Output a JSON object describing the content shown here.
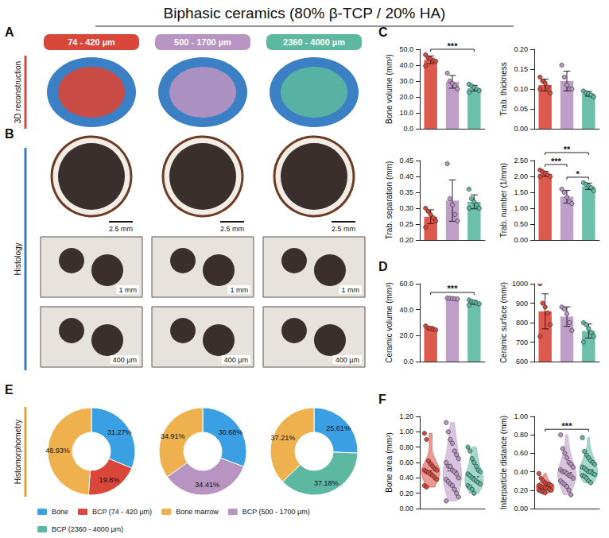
{
  "title": "Biphasic ceramics (80% β-TCP / 20% HA)",
  "groups": {
    "labels": [
      "74 - 420 µm",
      "500 - 1700 µm",
      "2360 - 4000 µm"
    ],
    "colors": [
      "#d9473a",
      "#b894c2",
      "#5cb8a1"
    ]
  },
  "sections": [
    {
      "letter": "A",
      "label": "3D reconstruction",
      "color": "#d9473a"
    },
    {
      "letter": "B",
      "label": "Histology",
      "color": "#3a7cc0",
      "scale_bars": [
        "2.5 mm",
        "1 mm",
        "400 µm"
      ]
    },
    {
      "letter": "E",
      "label": "Histomorphometry",
      "color": "#e3a23a"
    }
  ],
  "chart_data": [
    {
      "type": "bar",
      "panel": "C",
      "y_label": "Bone volume (mm³)",
      "categories": [
        "74 - 420 µm",
        "500 - 1700 µm",
        "2360 - 4000 µm"
      ],
      "values": [
        43.4,
        29.5,
        25.5
      ],
      "errors": [
        2.4,
        4.0,
        1.8
      ],
      "points": [
        [
          46.5,
          44.5,
          44,
          43,
          42.5,
          39.5
        ],
        [
          35,
          30,
          28.5,
          27,
          25
        ],
        [
          28,
          27,
          26,
          25,
          24,
          23
        ]
      ],
      "colors": [
        "#d9473a",
        "#b894c2",
        "#5cb8a1"
      ],
      "ylim": [
        0,
        50
      ],
      "yticks": [
        {
          "value": 0,
          "label": "0.0"
        },
        {
          "value": 10,
          "label": "10.0"
        },
        {
          "value": 20,
          "label": "20.0"
        },
        {
          "value": 30,
          "label": "30.0"
        },
        {
          "value": 40,
          "label": "40.0"
        },
        {
          "value": 50,
          "label": "50.0"
        }
      ],
      "annotations": [
        {
          "between": [
            "74 - 420 µm",
            "2360 - 4000 µm"
          ],
          "text": "***"
        }
      ],
      "tick_labels": "y",
      "grid": false
    },
    {
      "type": "bar",
      "panel": "C",
      "y_label": "Trab. thickness",
      "categories": [
        "74 - 420 µm",
        "500 - 1700 µm",
        "2360 - 4000 µm"
      ],
      "values": [
        0.11,
        0.12,
        0.088
      ],
      "errors": [
        0.015,
        0.025,
        0.006
      ],
      "points": [
        [
          0.13,
          0.12,
          0.115,
          0.105,
          0.09,
          0.1
        ],
        [
          0.16,
          0.13,
          0.11,
          0.1,
          0.1
        ],
        [
          0.095,
          0.09,
          0.088,
          0.085,
          0.08
        ]
      ],
      "colors": [
        "#d9473a",
        "#b894c2",
        "#5cb8a1"
      ],
      "ylim": [
        0,
        0.2
      ],
      "yticks": [
        {
          "value": 0,
          "label": "0.00"
        },
        0.05,
        {
          "value": 0.1,
          "label": "0.10"
        },
        0.15,
        {
          "value": 0.2,
          "label": "0.20"
        }
      ],
      "annotations": [],
      "tick_labels": "y",
      "grid": false
    },
    {
      "type": "bar",
      "panel": "C",
      "y_label": "Trab. separation (mm)",
      "categories": [
        "74 - 420 µm",
        "500 - 1700 µm",
        "2360 - 4000 µm"
      ],
      "values": [
        0.273,
        0.324,
        0.32
      ],
      "errors": [
        0.022,
        0.065,
        0.022
      ],
      "points": [
        [
          0.3,
          0.29,
          0.28,
          0.27,
          0.26,
          0.24
        ],
        [
          0.44,
          0.33,
          0.31,
          0.28,
          0.26
        ],
        [
          0.36,
          0.33,
          0.32,
          0.31,
          0.3,
          0.3
        ]
      ],
      "colors": [
        "#d9473a",
        "#b894c2",
        "#5cb8a1"
      ],
      "ylim": [
        0.2,
        0.45
      ],
      "yticks": [
        {
          "value": 0.2,
          "label": "0.20"
        },
        0.25,
        {
          "value": 0.3,
          "label": "0.30"
        },
        0.35,
        {
          "value": 0.4,
          "label": "0.40"
        },
        0.45
      ],
      "annotations": [],
      "tick_labels": "y",
      "grid": false
    },
    {
      "type": "bar",
      "panel": "C",
      "y_label": "Trab. number (1/mm)",
      "categories": [
        "74 - 420 µm",
        "500 - 1700 µm",
        "2360 - 4000 µm"
      ],
      "values": [
        2.08,
        1.36,
        1.69
      ],
      "errors": [
        0.08,
        0.2,
        0.1
      ],
      "points": [
        [
          2.2,
          2.15,
          2.1,
          2.05,
          2.0,
          2.0
        ],
        [
          1.6,
          1.5,
          1.35,
          1.2,
          1.15
        ],
        [
          1.8,
          1.75,
          1.7,
          1.65,
          1.55
        ]
      ],
      "colors": [
        "#d9473a",
        "#b894c2",
        "#5cb8a1"
      ],
      "ylim": [
        0,
        2.5
      ],
      "yticks": [
        {
          "value": 0,
          "label": "0.00"
        },
        {
          "value": 0.5,
          "label": "0.50"
        },
        {
          "value": 1,
          "label": "1.00"
        },
        {
          "value": 1.5,
          "label": "1.50"
        },
        {
          "value": 2,
          "label": "2.00"
        },
        {
          "value": 2.5,
          "label": "2.50"
        }
      ],
      "annotations": [
        {
          "between": [
            "74 - 420 µm",
            "500 - 1700 µm"
          ],
          "text": "***"
        },
        {
          "between": [
            "500 - 1700 µm",
            "2360 - 4000 µm"
          ],
          "text": "*"
        },
        {
          "between": [
            "74 - 420 µm",
            "2360 - 4000 µm"
          ],
          "text": "**"
        }
      ],
      "tick_labels": "y",
      "grid": false
    },
    {
      "type": "bar",
      "panel": "D",
      "y_label": "Ceramic volume (mm³)",
      "categories": [
        "74 - 420 µm",
        "500 - 1700 µm",
        "2360 - 4000 µm"
      ],
      "values": [
        25.7,
        48.6,
        45.5
      ],
      "errors": [
        1.2,
        0.3,
        1.5
      ],
      "points": [
        [
          27.5,
          26,
          25.5,
          25,
          24.5
        ],
        [
          49,
          48.8,
          48.6,
          48.4,
          48.2
        ],
        [
          47.5,
          46.5,
          46,
          45,
          44.5,
          43.5
        ]
      ],
      "colors": [
        "#d9473a",
        "#b894c2",
        "#5cb8a1"
      ],
      "ylim": [
        0,
        60
      ],
      "yticks": [
        {
          "value": 0,
          "label": "0.0"
        },
        {
          "value": 20,
          "label": "20.0"
        },
        {
          "value": 40,
          "label": "40.0"
        },
        {
          "value": 60,
          "label": "60.0"
        }
      ],
      "annotations": [
        {
          "between": [
            "74 - 420 µm",
            "2360 - 4000 µm"
          ],
          "text": "***"
        }
      ],
      "tick_labels": "y",
      "grid": false
    },
    {
      "type": "bar",
      "panel": "D",
      "y_label": "Ceramic surface (mm²)",
      "categories": [
        "74 - 420 µm",
        "500 - 1700 µm",
        "2360 - 4000 µm"
      ],
      "values": [
        858,
        831,
        757
      ],
      "errors": [
        90,
        50,
        36
      ],
      "points": [
        [
          1000,
          900,
          880,
          850,
          790,
          730
        ],
        [
          880,
          870,
          845,
          800,
          760
        ],
        [
          800,
          790,
          770,
          750,
          730,
          700
        ]
      ],
      "colors": [
        "#d9473a",
        "#b894c2",
        "#5cb8a1"
      ],
      "ylim": [
        600,
        1000
      ],
      "yticks": [
        600,
        700,
        800,
        900,
        1000
      ],
      "annotations": [],
      "tick_labels": "y",
      "grid": false
    },
    {
      "type": "violin",
      "panel": "F",
      "y_label": "Bone area (mm²)",
      "categories": [
        "74 - 420 µm",
        "500 - 1700 µm",
        "2360 - 4000 µm"
      ],
      "points": [
        [
          0.98,
          0.9,
          0.62,
          0.58,
          0.55,
          0.52,
          0.5,
          0.5,
          0.48,
          0.47,
          0.45,
          0.43,
          0.4,
          0.38,
          0.3,
          0.28
        ],
        [
          1.12,
          1.0,
          0.9,
          0.85,
          0.75,
          0.7,
          0.65,
          0.6,
          0.55,
          0.55,
          0.5,
          0.48,
          0.45,
          0.4,
          0.38,
          0.35,
          0.32,
          0.3,
          0.25,
          0.2,
          0.15,
          0.1
        ],
        [
          0.8,
          0.75,
          0.65,
          0.6,
          0.55,
          0.5,
          0.48,
          0.45,
          0.43,
          0.4,
          0.38,
          0.36,
          0.34,
          0.32,
          0.3,
          0.28,
          0.25,
          0.2
        ]
      ],
      "colors": [
        "#d9473a",
        "#b894c2",
        "#5cb8a1"
      ],
      "ylim": [
        0,
        1.2
      ],
      "yticks": [
        {
          "value": 0,
          "label": "0.00"
        },
        {
          "value": 0.2,
          "label": "0.20"
        },
        {
          "value": 0.4,
          "label": "0.40"
        },
        {
          "value": 0.6,
          "label": "0.60"
        },
        {
          "value": 0.8,
          "label": "0.80"
        },
        {
          "value": 1,
          "label": "1.00"
        },
        {
          "value": 1.2,
          "label": "1.20"
        }
      ],
      "annotations": [],
      "tick_labels": "y",
      "grid": false
    },
    {
      "type": "violin",
      "panel": "F",
      "y_label": "Interparticle distance (mm)",
      "categories": [
        "74 - 420 µm",
        "500 - 1700 µm",
        "2360 - 4000 µm"
      ],
      "points": [
        [
          0.38,
          0.33,
          0.3,
          0.28,
          0.27,
          0.26,
          0.25,
          0.25,
          0.24,
          0.23,
          0.23,
          0.22,
          0.21,
          0.2,
          0.2,
          0.19,
          0.18,
          0.17
        ],
        [
          0.8,
          0.65,
          0.6,
          0.55,
          0.5,
          0.48,
          0.45,
          0.42,
          0.4,
          0.4,
          0.38,
          0.36,
          0.35,
          0.33,
          0.3,
          0.28,
          0.26,
          0.24,
          0.2,
          0.15
        ],
        [
          0.77,
          0.62,
          0.58,
          0.55,
          0.52,
          0.5,
          0.48,
          0.45,
          0.44,
          0.42,
          0.4,
          0.4,
          0.38,
          0.37,
          0.36,
          0.35,
          0.33,
          0.3,
          0.28
        ]
      ],
      "colors": [
        "#d9473a",
        "#b894c2",
        "#5cb8a1"
      ],
      "ylim": [
        0,
        1
      ],
      "yticks": [
        {
          "value": 0,
          "label": "0.00"
        },
        {
          "value": 0.2,
          "label": "0.20"
        },
        {
          "value": 0.4,
          "label": "0.40"
        },
        {
          "value": 0.6,
          "label": "0.60"
        },
        {
          "value": 0.8,
          "label": "0.80"
        },
        {
          "value": 1,
          "label": "1.00"
        }
      ],
      "annotations": [
        {
          "between": [
            "74 - 420 µm",
            "2360 - 4000 µm"
          ],
          "text": "***"
        }
      ],
      "tick_labels": "y",
      "grid": false
    },
    {
      "type": "pie",
      "categories": [
        "Bone",
        "BCP (74 - 420 µm)",
        "Bone marrow"
      ],
      "values": [
        31.27,
        19.8,
        48.93
      ],
      "value_labels": [
        "31.27%",
        "19.8%",
        "48.93%"
      ],
      "colors": [
        "#3aa0e3",
        "#d9473a",
        "#efb04e"
      ],
      "data_labels": true,
      "legend": "bottom"
    },
    {
      "type": "pie",
      "categories": [
        "Bone",
        "BCP (500 - 1700 µm)",
        "Bone marrow"
      ],
      "values": [
        30.68,
        34.41,
        34.91
      ],
      "value_labels": [
        "30.68%",
        "34.41%",
        "34.91%"
      ],
      "colors": [
        "#3aa0e3",
        "#b894c2",
        "#efb04e"
      ],
      "data_labels": true,
      "legend": "bottom"
    },
    {
      "type": "pie",
      "categories": [
        "Bone",
        "BCP (2360 - 4000 µm)",
        "Bone marrow"
      ],
      "values": [
        25.61,
        37.18,
        37.21
      ],
      "value_labels": [
        "25.61%",
        "37.18%",
        "37.21%"
      ],
      "colors": [
        "#3aa0e3",
        "#5cb8a1",
        "#efb04e"
      ],
      "data_labels": true,
      "legend": "bottom"
    }
  ]
}
